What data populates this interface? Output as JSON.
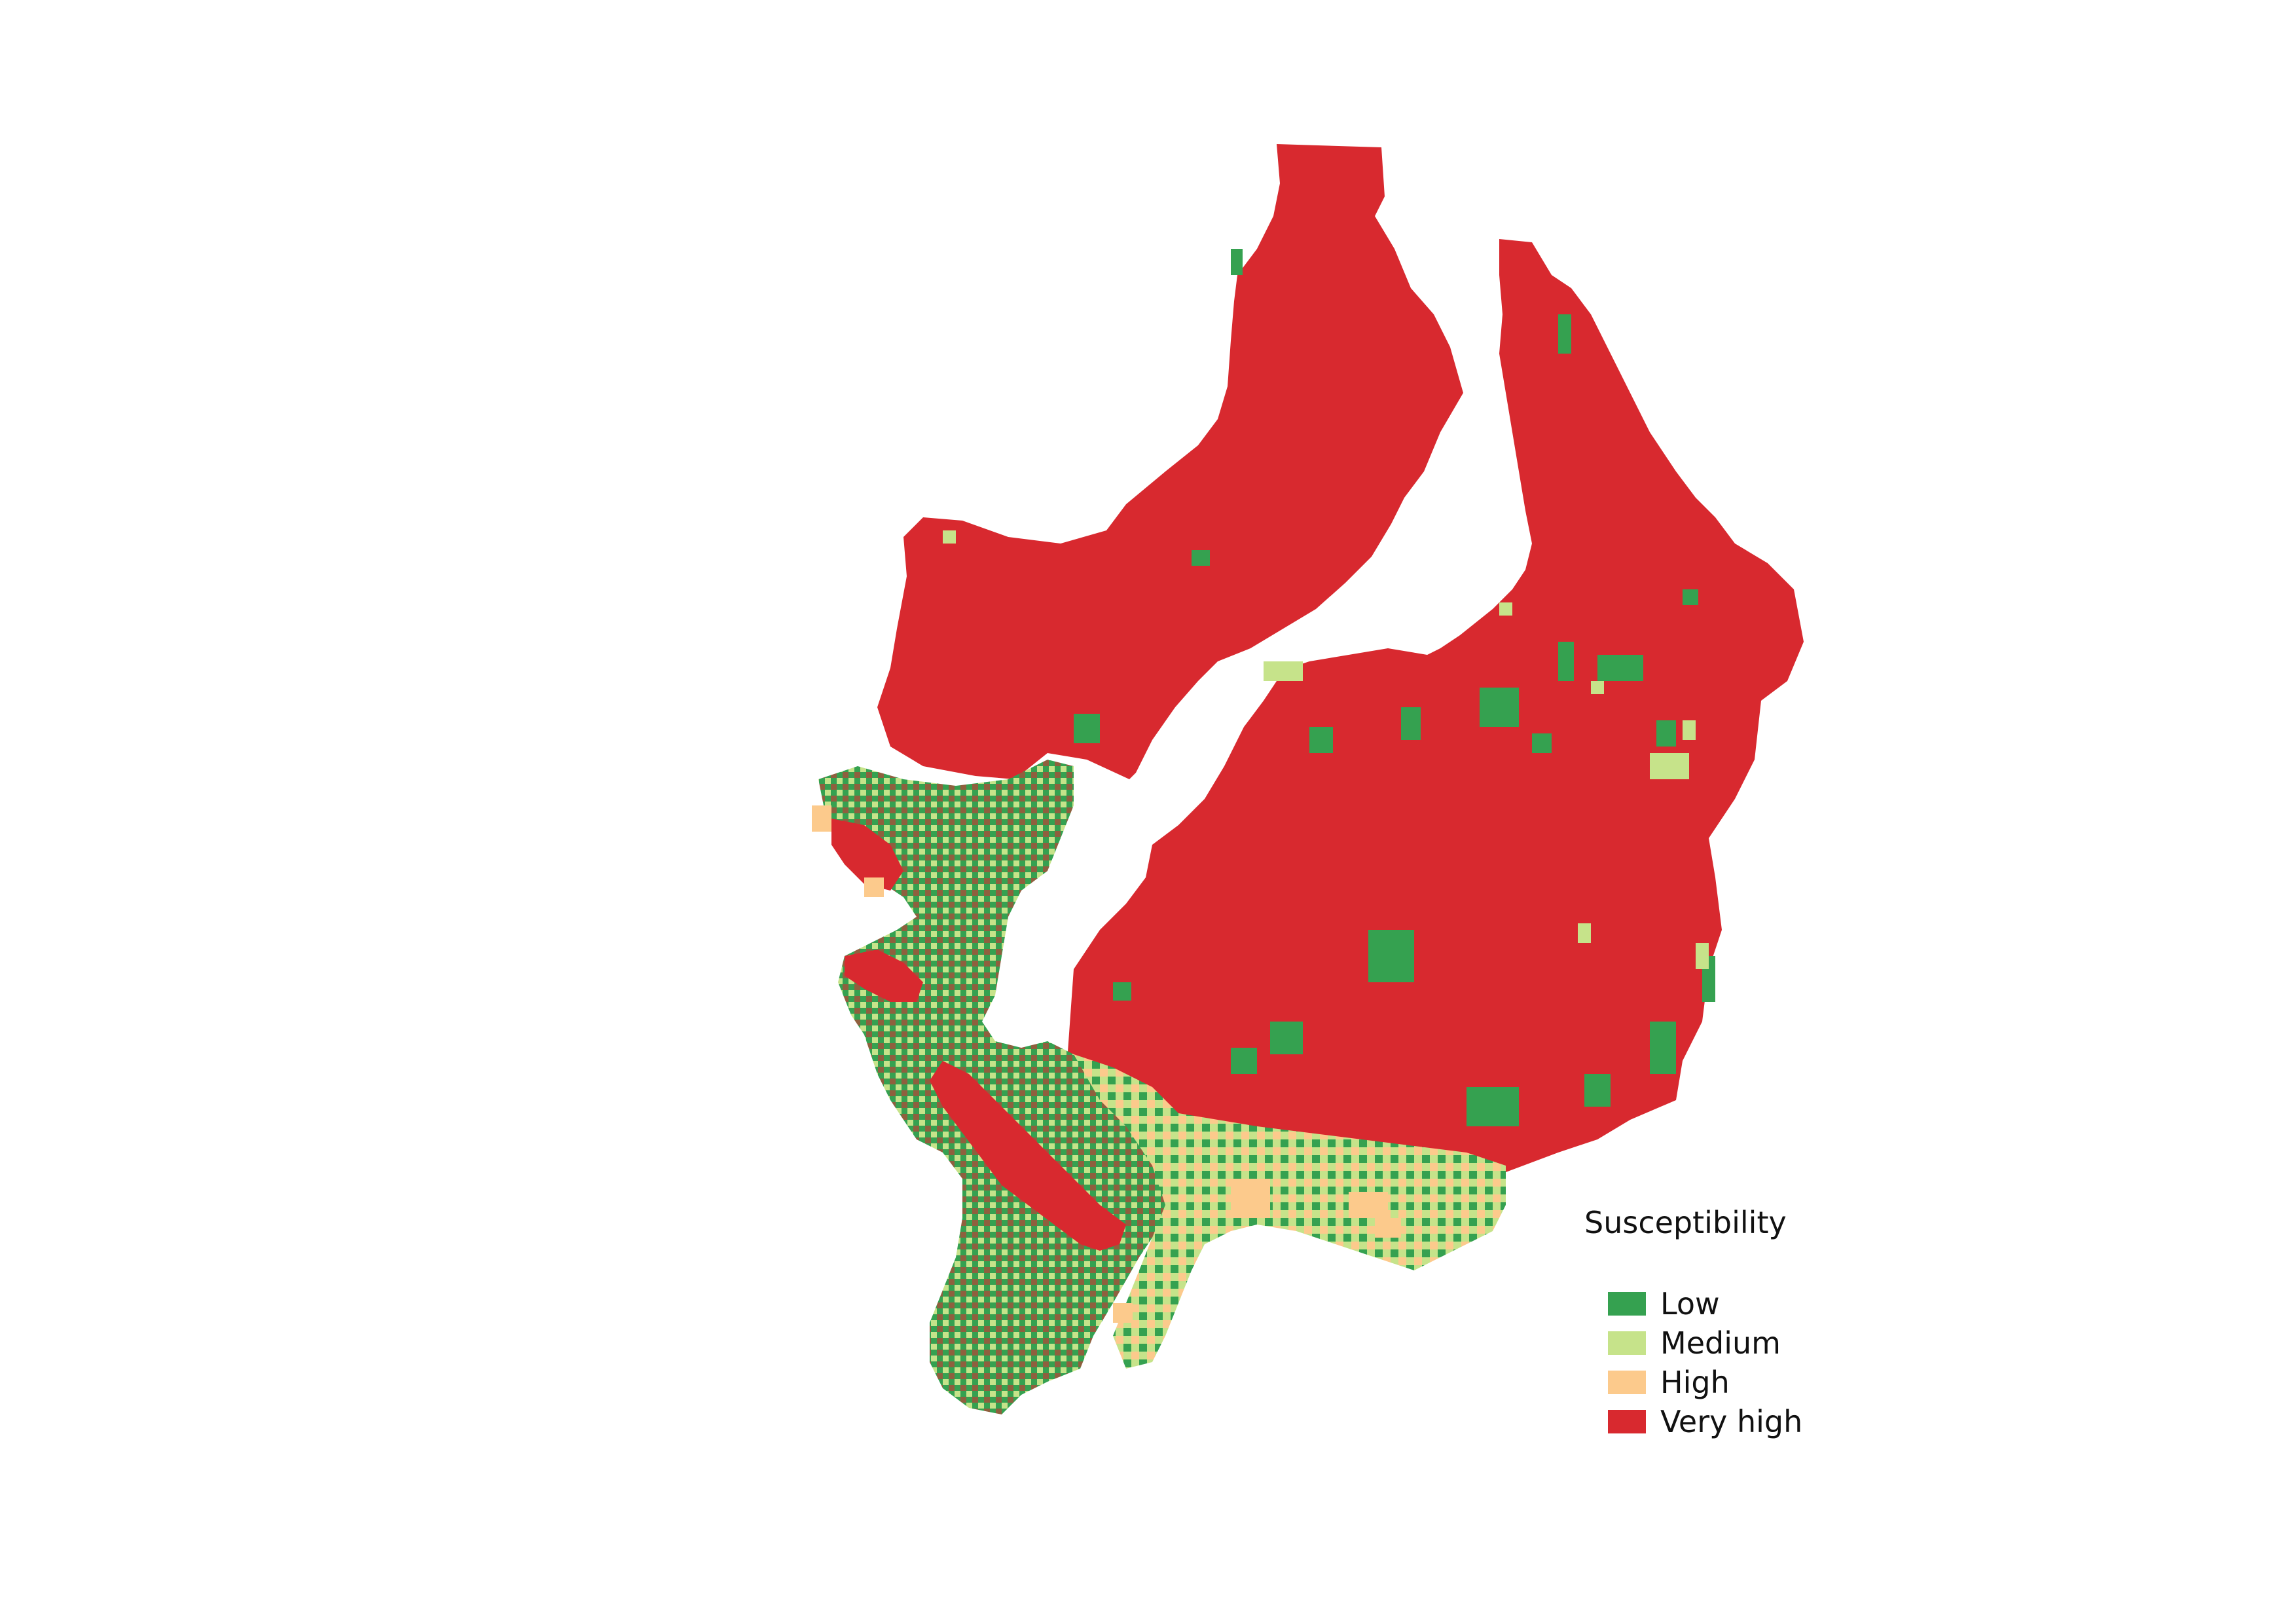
{
  "legend": {
    "title": "Susceptibility",
    "items": [
      {
        "label": "Low",
        "color": "#35a150"
      },
      {
        "label": "Medium",
        "color": "#c6e38a"
      },
      {
        "label": "High",
        "color": "#fcca8c"
      },
      {
        "label": "Very high",
        "color": "#d8292f"
      }
    ]
  },
  "map": {
    "background": "#ffffff",
    "classes": [
      "Low",
      "Medium",
      "High",
      "Very high"
    ]
  }
}
